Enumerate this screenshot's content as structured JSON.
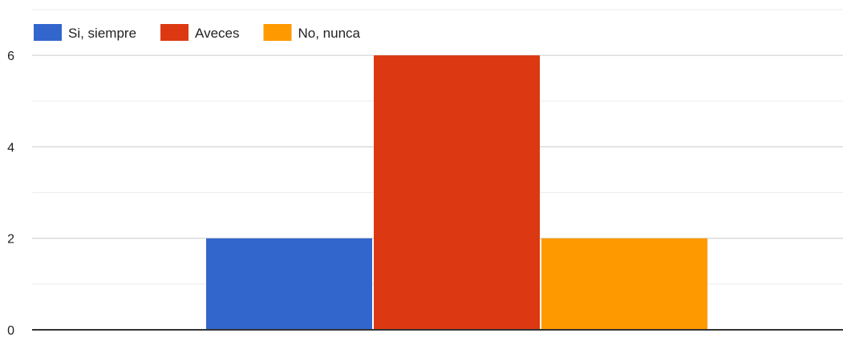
{
  "chart_data": {
    "type": "bar",
    "categories": [
      ""
    ],
    "series": [
      {
        "name": "Si, siempre",
        "values": [
          2
        ],
        "color": "#3366cc"
      },
      {
        "name": "Aveces",
        "values": [
          6
        ],
        "color": "#dc3912"
      },
      {
        "name": "No, nunca",
        "values": [
          2
        ],
        "color": "#ff9900"
      }
    ],
    "title": "",
    "xlabel": "",
    "ylabel": "",
    "ylim": [
      0,
      7
    ],
    "yticks": [
      0,
      2,
      4,
      6
    ],
    "minor_gridlines": true,
    "grid": true,
    "legend": "top-left"
  }
}
